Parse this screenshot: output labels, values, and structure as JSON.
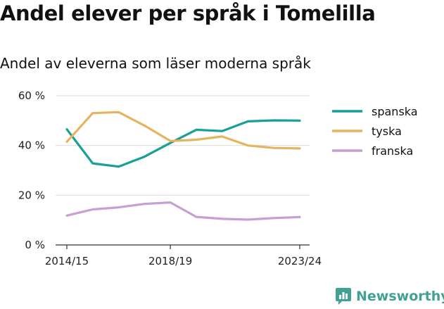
{
  "title": "Andel elever per språk i Tomelilla",
  "subtitle": "Andel av eleverna som läser moderna språk",
  "brand": {
    "name": "Newsworthy",
    "color": "#41a293"
  },
  "chart_data": {
    "type": "line",
    "x": [
      "2014/15",
      "2015/16",
      "2016/17",
      "2017/18",
      "2018/19",
      "2019/20",
      "2020/21",
      "2021/22",
      "2022/23",
      "2023/24"
    ],
    "x_tick_labels": [
      "2014/15",
      "2018/19",
      "2023/24"
    ],
    "y_ticks": [
      0,
      20,
      40,
      60
    ],
    "y_tick_labels": [
      "0 %",
      "20 %",
      "40 %",
      "60 %"
    ],
    "ylim": [
      0,
      60
    ],
    "grid": "horizontal",
    "legend": "right",
    "series": [
      {
        "name": "spanska",
        "color": "#17a196",
        "values": [
          46.5,
          32.8,
          31.5,
          35.5,
          41.0,
          46.3,
          45.8,
          49.7,
          50.1,
          50.0
        ]
      },
      {
        "name": "tyska",
        "color": "#e5b45f",
        "values": [
          41.5,
          53.0,
          53.4,
          48.0,
          41.8,
          42.3,
          43.6,
          40.0,
          39.0,
          38.8
        ]
      },
      {
        "name": "franska",
        "color": "#c6a0d4",
        "values": [
          11.8,
          14.3,
          15.1,
          16.5,
          17.1,
          11.3,
          10.5,
          10.2,
          10.8,
          11.2
        ]
      }
    ]
  }
}
